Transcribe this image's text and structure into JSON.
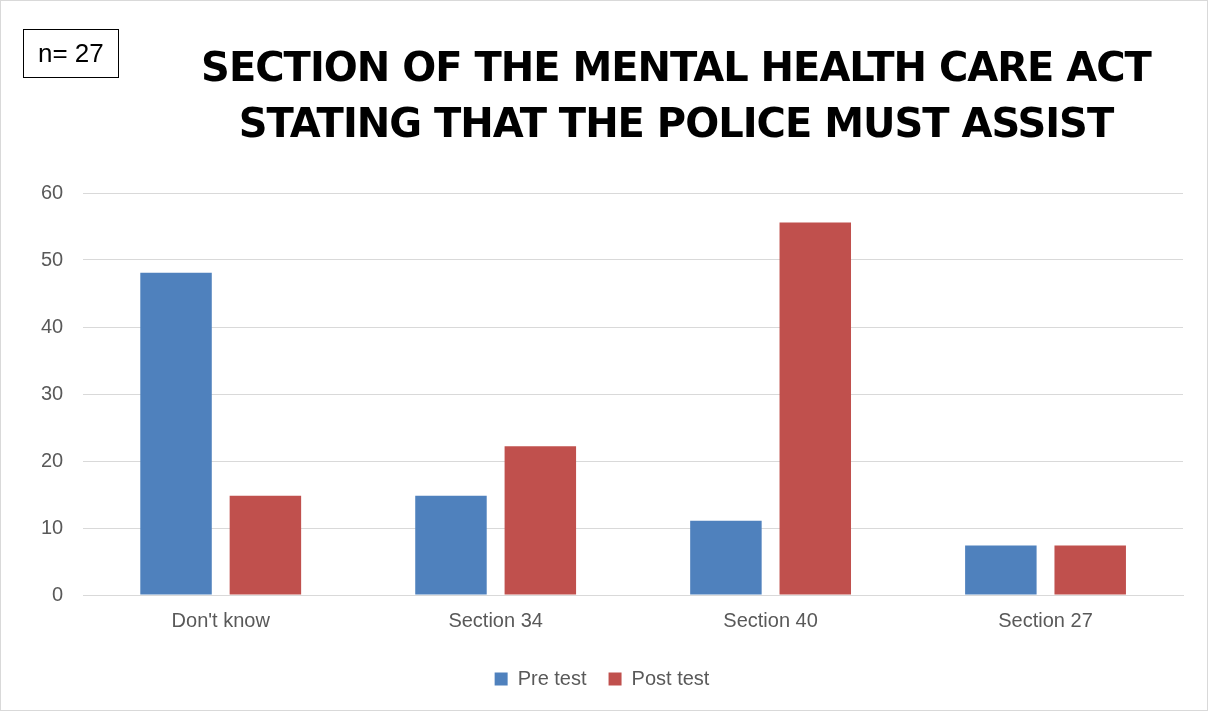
{
  "chart_data": {
    "type": "bar",
    "title": "SECTION OF THE MENTAL HEALTH CARE ACT STATING THAT THE POLICE MUST ASSIST",
    "annotations": [
      "n= 27"
    ],
    "categories": [
      "Don't know",
      "Section 34",
      "Section 40",
      "Section 27"
    ],
    "series": [
      {
        "name": "Pre test",
        "color": "#4f81bd",
        "values": [
          48.1,
          14.8,
          11.1,
          7.4
        ]
      },
      {
        "name": "Post test",
        "color": "#c0504d",
        "values": [
          14.8,
          22.2,
          55.6,
          7.4
        ]
      }
    ],
    "ylim": [
      0,
      60
    ],
    "yticks": [
      0,
      10,
      20,
      30,
      40,
      50,
      60
    ],
    "grid": "y",
    "legend": "bottom"
  }
}
